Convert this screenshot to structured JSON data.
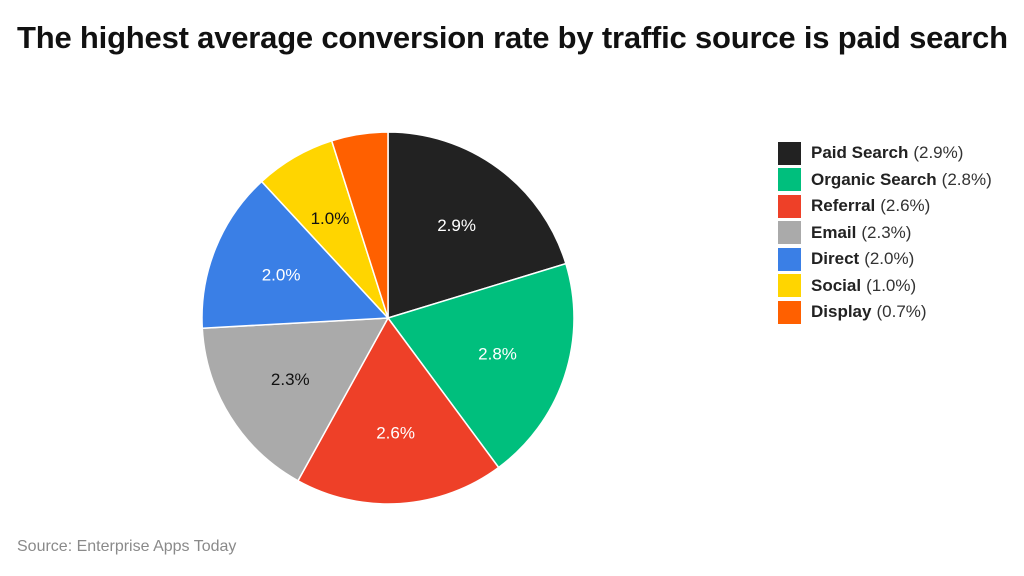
{
  "title": "The highest average conversion rate by traffic source is paid search",
  "source": "Source: Enterprise Apps Today",
  "chart_data": {
    "type": "pie",
    "title": "The highest average conversion rate by traffic source is paid search",
    "unit": "%",
    "legend_position": "right",
    "start": "top",
    "direction": "clockwise",
    "slices": [
      {
        "name": "Paid Search",
        "value": 2.9,
        "label": "2.9%",
        "legend_value": "(2.9%)",
        "color": "#222222",
        "label_color": "#ffffff"
      },
      {
        "name": "Organic Search",
        "value": 2.8,
        "label": "2.8%",
        "legend_value": "(2.8%)",
        "color": "#00bf7d",
        "label_color": "#ffffff"
      },
      {
        "name": "Referral",
        "value": 2.6,
        "label": "2.6%",
        "legend_value": "(2.6%)",
        "color": "#ee4028",
        "label_color": "#ffffff"
      },
      {
        "name": "Email",
        "value": 2.3,
        "label": "2.3%",
        "legend_value": "(2.3%)",
        "color": "#aaaaaa",
        "label_color": "#111111"
      },
      {
        "name": "Direct",
        "value": 2.0,
        "label": "2.0%",
        "legend_value": "(2.0%)",
        "color": "#3a7fe6",
        "label_color": "#ffffff"
      },
      {
        "name": "Social",
        "value": 1.0,
        "label": "1.0%",
        "legend_value": "(1.0%)",
        "color": "#ffd500",
        "label_color": "#111111"
      },
      {
        "name": "Display",
        "value": 0.7,
        "label": "",
        "legend_value": "(0.7%)",
        "color": "#ff6000",
        "label_color": "#ffffff"
      }
    ]
  }
}
